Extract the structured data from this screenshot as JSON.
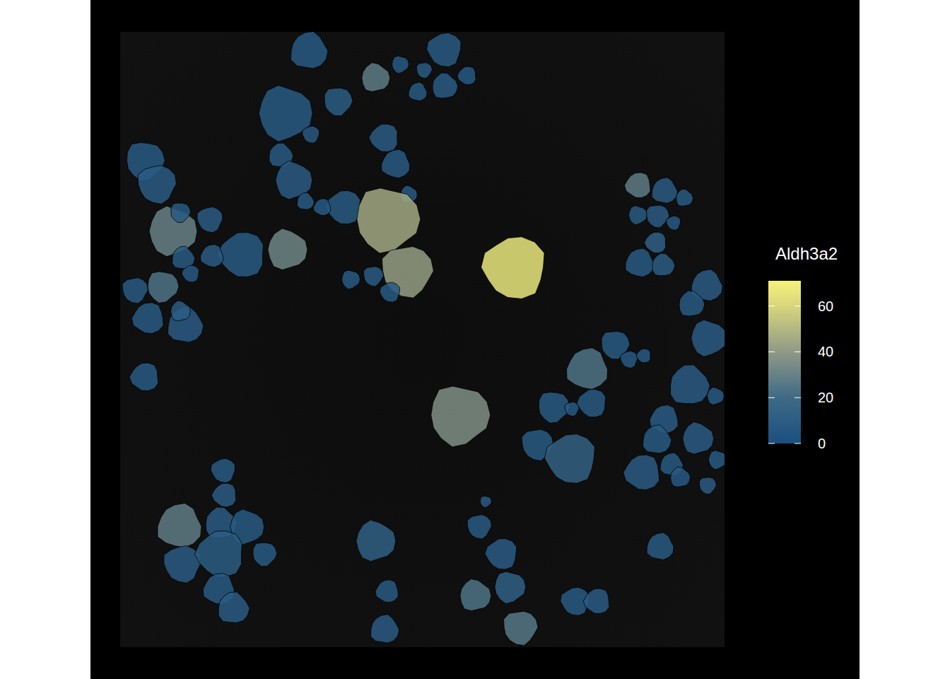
{
  "chart_data": {
    "type": "spatial",
    "title": "Aldh3a2",
    "xlim": [
      0,
      855
    ],
    "ylim": [
      0,
      870
    ],
    "tick_labels": false,
    "x": [
      267,
      361,
      396,
      430,
      459,
      491,
      421,
      459,
      233,
      308,
      270,
      374,
      390,
      227,
      245,
      35,
      52,
      317,
      286,
      262,
      408,
      378,
      406,
      558,
      733,
      770,
      798,
      732,
      760,
      783,
      758,
      735,
      768,
      74,
      85,
      127,
      173,
      130,
      89,
      236,
      60,
      21,
      100,
      40,
      92,
      85,
      326,
      358,
      382,
      35,
      830,
      808,
      832,
      700,
      720,
      741,
      661,
      805,
      842,
      613,
      639,
      668,
      770,
      759,
      817,
      480,
      590,
      638,
      739,
      780,
      792,
      845,
      831,
      146,
      148,
      84,
      142,
      179,
      204,
      88,
      142,
      140,
      160,
      361,
      517,
      508,
      540,
      378,
      374,
      502,
      551,
      566,
      644,
      675,
      764
    ],
    "y": [
      27,
      65,
      46,
      54,
      25,
      62,
      85,
      77,
      115,
      98,
      145,
      150,
      187,
      175,
      210,
      182,
      215,
      248,
      248,
      240,
      230,
      265,
      338,
      333,
      217,
      225,
      235,
      259,
      260,
      270,
      298,
      327,
      330,
      282,
      255,
      265,
      315,
      317,
      320,
      308,
      360,
      365,
      342,
      405,
      415,
      395,
      350,
      345,
      368,
      488,
      359,
      385,
      433,
      442,
      463,
      458,
      477,
      500,
      515,
      530,
      533,
      525,
      548,
      577,
      575,
      542,
      583,
      603,
      623,
      612,
      630,
      605,
      641,
      620,
      655,
      699,
      695,
      700,
      738,
      752,
      738,
      788,
      815,
      720,
      664,
      699,
      738,
      791,
      845,
      797,
      785,
      842,
      805,
      805,
      728
    ],
    "sizes": [
      26,
      20,
      12,
      11,
      24,
      13,
      13,
      18,
      38,
      20,
      12,
      20,
      20,
      17,
      26,
      27,
      27,
      24,
      12,
      12,
      12,
      45,
      36,
      44,
      18,
      18,
      12,
      13,
      16,
      10,
      15,
      20,
      16,
      34,
      14,
      18,
      32,
      16,
      16,
      28,
      22,
      18,
      12,
      22,
      25,
      14,
      13,
      14,
      14,
      20,
      22,
      18,
      25,
      20,
      12,
      10,
      29,
      28,
      12,
      22,
      10,
      20,
      20,
      20,
      22,
      42,
      22,
      35,
      25,
      16,
      14,
      13,
      12,
      17,
      17,
      31,
      22,
      24,
      17,
      26,
      33,
      22,
      22,
      28,
      8,
      17,
      22,
      16,
      20,
      22,
      22,
      24,
      20,
      18,
      19
    ],
    "values": [
      8,
      28,
      7,
      9,
      8,
      7,
      8,
      9,
      8,
      10,
      7,
      9,
      8,
      8,
      9,
      8,
      9,
      8,
      7,
      8,
      8,
      45,
      42,
      67,
      28,
      9,
      8,
      8,
      9,
      7,
      12,
      8,
      10,
      30,
      8,
      9,
      8,
      9,
      8,
      32,
      24,
      8,
      7,
      8,
      9,
      10,
      8,
      9,
      8,
      8,
      9,
      8,
      9,
      8,
      7,
      8,
      24,
      9,
      8,
      8,
      7,
      8,
      9,
      8,
      9,
      36,
      8,
      14,
      9,
      8,
      7,
      8,
      9,
      8,
      9,
      28,
      9,
      8,
      8,
      9,
      10,
      8,
      9,
      12,
      8,
      8,
      9,
      8,
      9,
      24,
      12,
      26,
      8,
      9,
      8
    ],
    "colorbar": {
      "range": [
        0,
        71
      ],
      "ticks": [
        0,
        20,
        40,
        60
      ]
    }
  }
}
